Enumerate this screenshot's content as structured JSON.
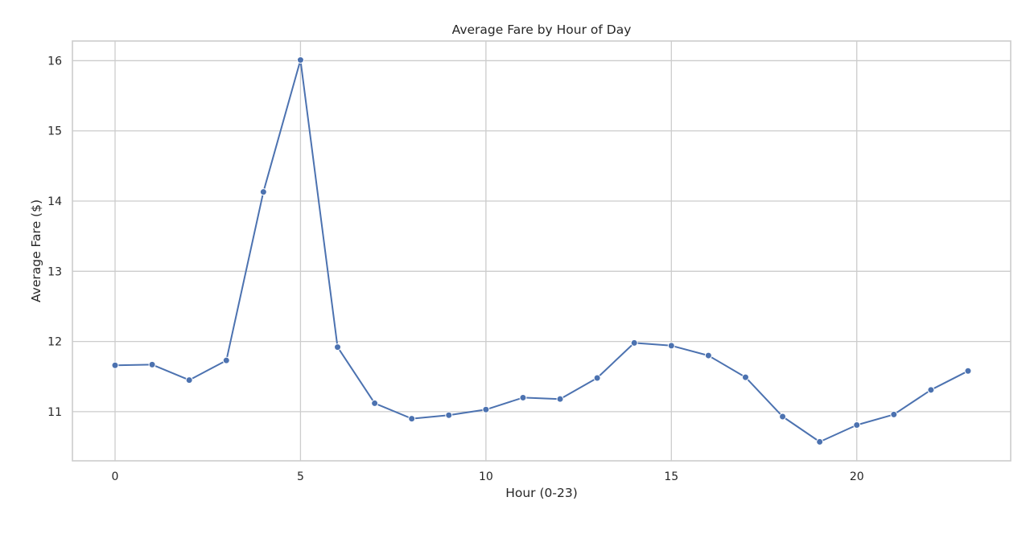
{
  "chart_data": {
    "type": "line",
    "title": "Average Fare by Hour of Day",
    "xlabel": "Hour (0-23)",
    "ylabel": "Average Fare ($)",
    "xlim": [
      -1.15,
      24.15
    ],
    "ylim": [
      10.3,
      16.28
    ],
    "x_ticks": [
      0,
      5,
      10,
      15,
      20
    ],
    "y_ticks": [
      11,
      12,
      13,
      14,
      15,
      16
    ],
    "grid": true,
    "series": [
      {
        "x": [
          0,
          1,
          2,
          3,
          4,
          5,
          6,
          7,
          8,
          9,
          10,
          11,
          12,
          13,
          14,
          15,
          16,
          17,
          18,
          19,
          20,
          21,
          22,
          23
        ],
        "values": [
          11.66,
          11.67,
          11.45,
          11.73,
          14.13,
          16.01,
          11.92,
          11.12,
          10.9,
          10.95,
          11.03,
          11.2,
          11.18,
          11.48,
          11.98,
          11.94,
          11.8,
          11.49,
          10.93,
          10.57,
          10.81,
          10.96,
          11.31,
          11.58
        ],
        "color": "#4c72b0"
      }
    ],
    "colors": {
      "grid": "#cccccc",
      "frame": "#cccccc",
      "text": "#262626"
    }
  }
}
